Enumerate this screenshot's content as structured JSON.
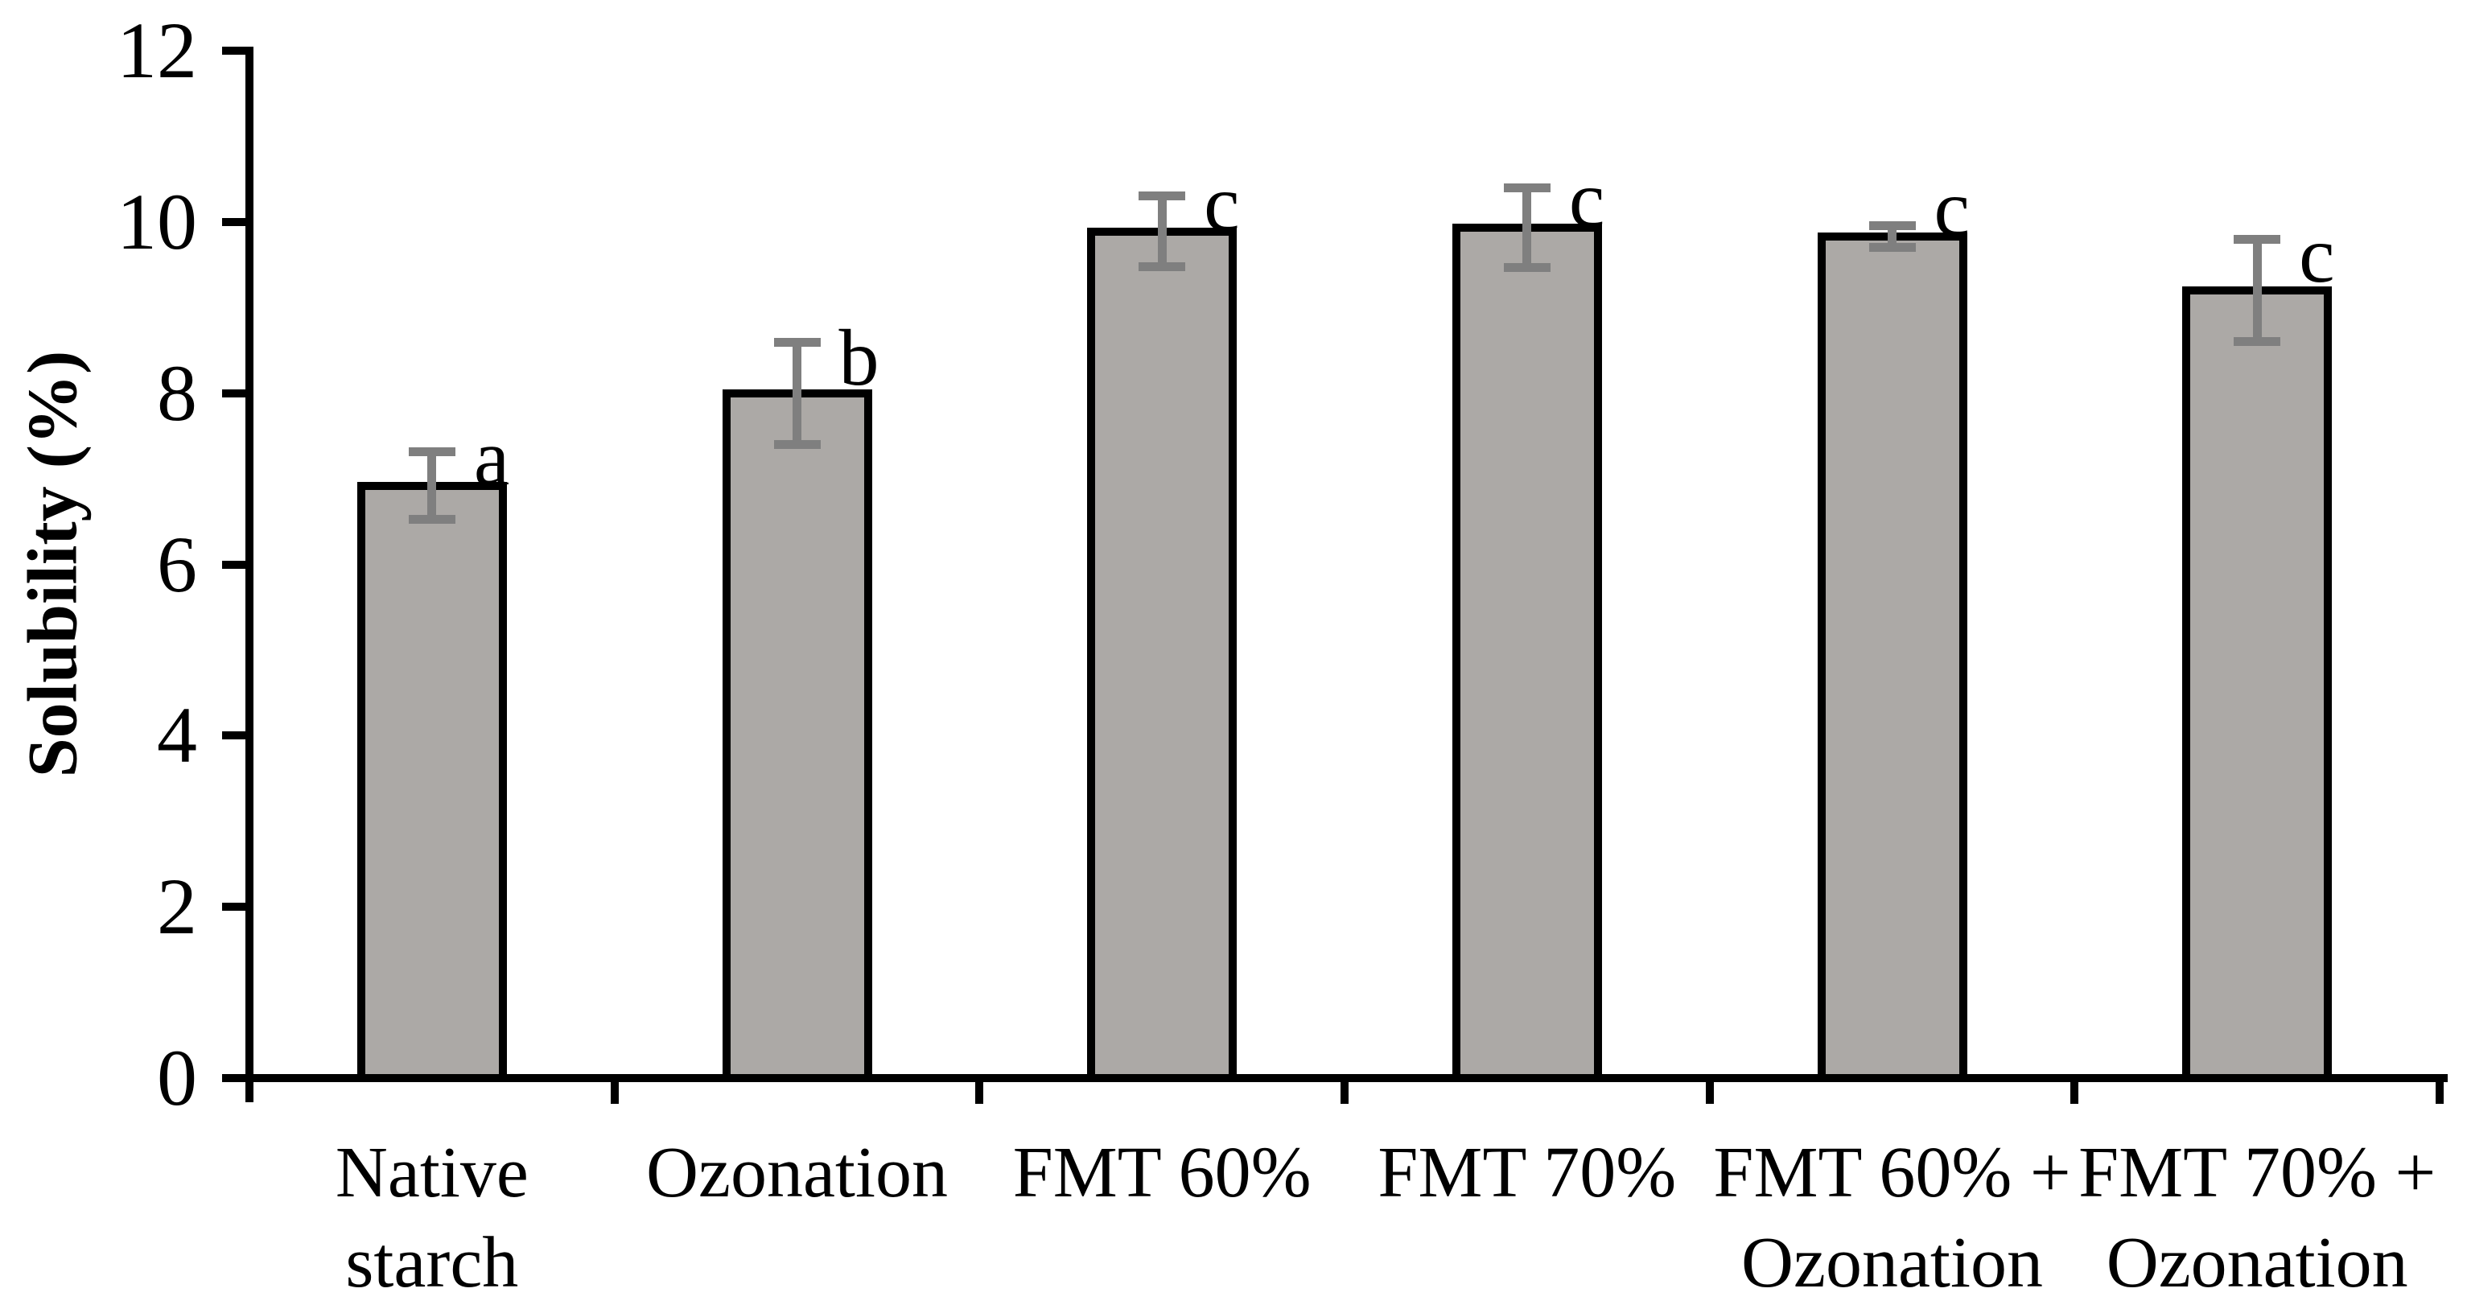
{
  "chart_data": {
    "type": "bar",
    "title": "",
    "xlabel": "",
    "ylabel": "Solubility (%)",
    "ylim": [
      0,
      12
    ],
    "yticks": [
      0,
      2,
      4,
      6,
      8,
      10,
      12
    ],
    "grid": false,
    "legend": null,
    "categories": [
      "Native starch",
      "Ozonation",
      "FMT 60%",
      "FMT 70%",
      "FMT 60% + Ozonation",
      "FMT 70% + Ozonation"
    ],
    "category_label_lines": [
      [
        "Native",
        "starch"
      ],
      [
        "Ozonation"
      ],
      [
        "FMT 60%"
      ],
      [
        "FMT 70%"
      ],
      [
        "FMT 60% +",
        "Ozonation"
      ],
      [
        "FMT 70% +",
        "Ozonation"
      ]
    ],
    "values": [
      6.92,
      8.0,
      9.89,
      9.93,
      9.83,
      9.2
    ],
    "errors": [
      0.4,
      0.6,
      0.42,
      0.47,
      0.13,
      0.6
    ],
    "sig_letters": [
      "a",
      "b",
      "c",
      "c",
      "c",
      "c"
    ],
    "colors": {
      "bar_fill": "#aca9a6",
      "bar_border": "#000000",
      "error_bar": "#7f7f7f",
      "axis": "#000000",
      "text": "#000000",
      "background": "#ffffff"
    }
  }
}
